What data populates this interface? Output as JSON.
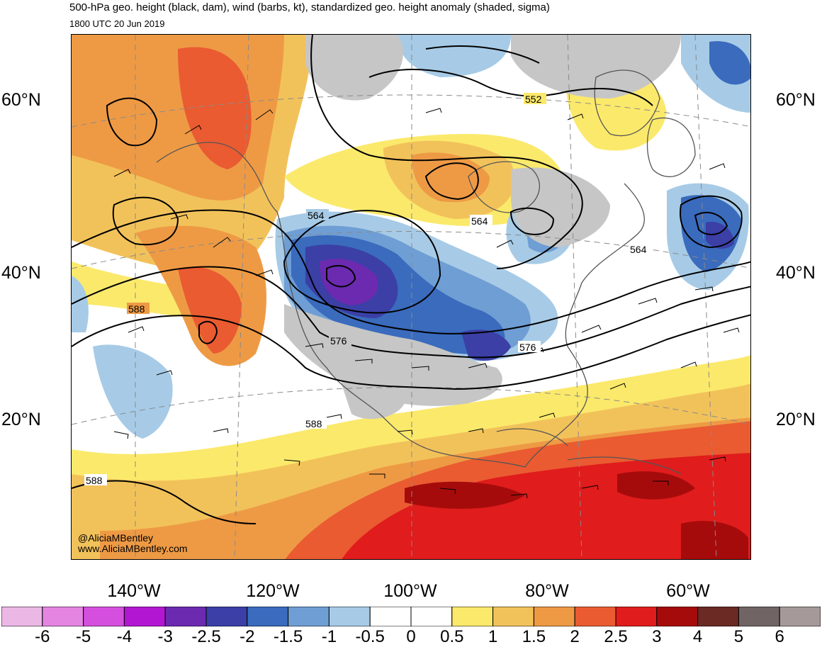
{
  "header": {
    "title": "500-hPa geo. height (black, dam), wind (barbs, kt), standardized geo. height anomaly (shaded, sigma)",
    "valid_time": "1800 UTC 20 Jun 2019"
  },
  "axes": {
    "lat_labels": [
      "60°N",
      "40°N",
      "20°N"
    ],
    "lon_labels": [
      "140°W",
      "120°W",
      "100°W",
      "80°W",
      "60°W"
    ]
  },
  "contour_labels": [
    "552",
    "564",
    "564",
    "564",
    "576",
    "576",
    "588",
    "588",
    "588"
  ],
  "credits": {
    "handle": "@AliciaMBentley",
    "website": "www.AliciaMBentley.com"
  },
  "colorbar": {
    "colors": [
      "#ebb8e6",
      "#e585e2",
      "#d44fdd",
      "#b316d3",
      "#6c2ab0",
      "#3b3fa6",
      "#3a6bbd",
      "#6f9ed4",
      "#a7cbe6",
      "#ffffff",
      "#ffffff",
      "#fbe96b",
      "#f2c25a",
      "#ee9a45",
      "#ea5b31",
      "#e01c1c",
      "#a60b0b",
      "#6b2a24",
      "#716464",
      "#a59a99"
    ],
    "labels": [
      "-6",
      "-5",
      "-4",
      "-3",
      "-2.5",
      "-2",
      "-1.5",
      "-1",
      "-0.5",
      "0",
      "0.5",
      "1",
      "1.5",
      "2",
      "2.5",
      "3",
      "4",
      "5",
      "6"
    ]
  },
  "map_colors": {
    "land_gray": "#c6c6c6",
    "coast": "#555555",
    "grid": "#8a8a8a",
    "contour": "#000000"
  }
}
